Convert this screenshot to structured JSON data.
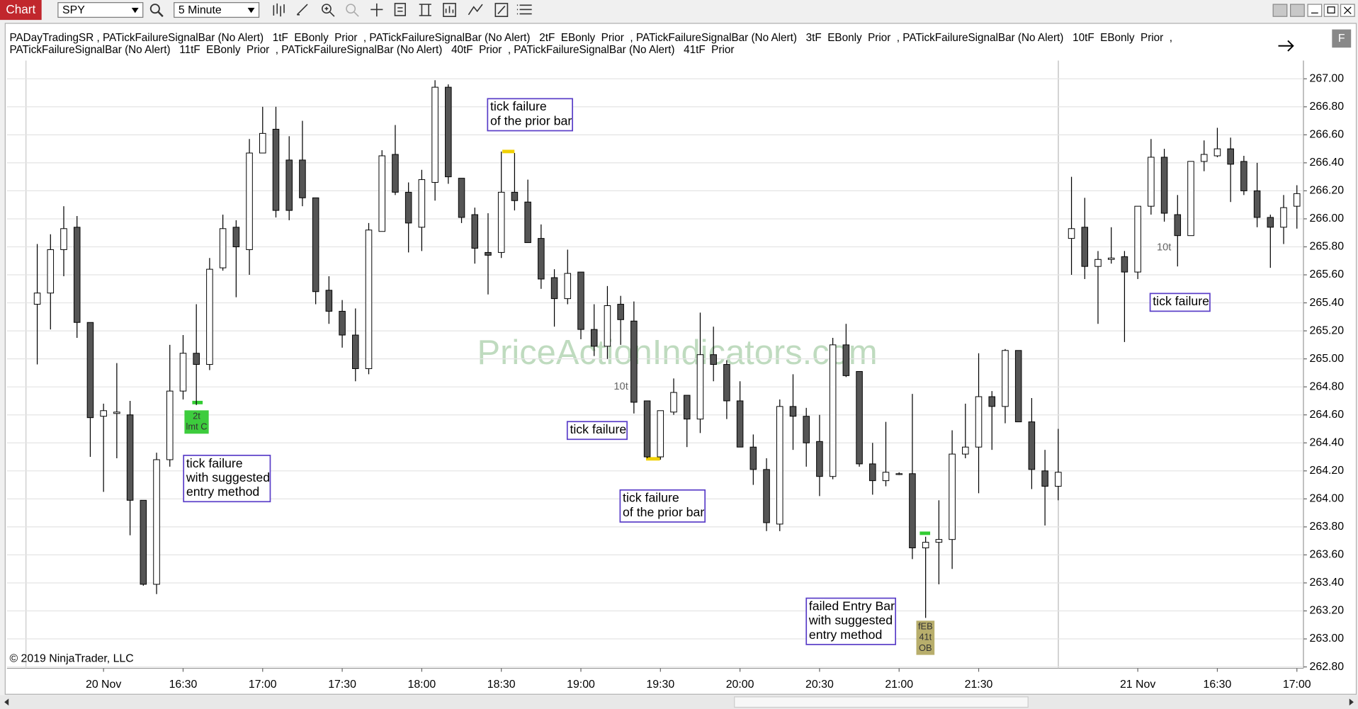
{
  "toolbar": {
    "title": "Chart",
    "instrument": "SPY",
    "interval": "5 Minute",
    "float_button": "F"
  },
  "indicator_label": [
    "PADayTradingSR , PATickFailureSignalBar (No Alert)   1tF  EBonly  Prior  , PATickFailureSignalBar (No Alert)   2tF  EBonly  Prior  , PATickFailureSignalBar (No Alert)   3tF  EBonly  Prior  , PATickFailureSignalBar (No Alert)   10tF  EBonly  Prior  ,",
    "PATickFailureSignalBar (No Alert)   11tF  EBonly  Prior  , PATickFailureSignalBar (No Alert)   40tF  Prior  , PATickFailureSignalBar (No Alert)   41tF  Prior"
  ],
  "copyright": "© 2019 NinjaTrader, LLC",
  "watermark": "PriceActionIndicators.com",
  "annotations": [
    {
      "lines": [
        "tick failure",
        "with suggested",
        "entry method"
      ]
    },
    {
      "lines": [
        "tick failure",
        "of the prior bar"
      ]
    },
    {
      "lines": [
        "tick failure"
      ]
    },
    {
      "lines": [
        "tick failure",
        "of the prior bar"
      ]
    },
    {
      "lines": [
        "failed Entry Bar",
        "with suggested",
        "entry method"
      ]
    },
    {
      "lines": [
        "tick failure"
      ]
    }
  ],
  "signal_labels": [
    {
      "lines": [
        "2t",
        "lmt C"
      ]
    },
    {
      "lines": [
        "fEB",
        "41t",
        "OB"
      ]
    }
  ],
  "tick_labels": [
    "10t",
    "10t"
  ],
  "chart_data": {
    "type": "candlestick",
    "x": [
      null,
      null,
      null,
      null,
      null,
      "20 Nov",
      null,
      null,
      null,
      null,
      null,
      "16:30",
      null,
      null,
      null,
      null,
      null,
      "17:00",
      null,
      null,
      null,
      null,
      null,
      "17:30",
      null,
      null,
      null,
      null,
      null,
      "18:00",
      null,
      null,
      null,
      null,
      null,
      "18:30",
      null,
      null,
      null,
      null,
      null,
      "19:00",
      null,
      null,
      null,
      null,
      null,
      "19:30",
      null,
      null,
      null,
      null,
      null,
      "20:00",
      null,
      null,
      null,
      null,
      null,
      "20:30",
      null,
      null,
      null,
      null,
      null,
      "21:00",
      null,
      null,
      null,
      null,
      null,
      "21:30",
      null,
      null,
      null,
      null,
      null,
      null,
      null,
      null,
      null,
      null,
      null,
      "21 Nov",
      null,
      null,
      null,
      null,
      null,
      "16:30",
      null,
      null,
      null,
      null,
      null,
      "17:00"
    ],
    "open": [
      265.39,
      265.47,
      265.78,
      265.94,
      265.26,
      264.59,
      264.61,
      264.6,
      263.99,
      263.39,
      264.28,
      264.77,
      265.04,
      264.96,
      265.65,
      265.94,
      265.78,
      266.47,
      266.64,
      266.42,
      266.42,
      266.15,
      265.49,
      265.34,
      265.17,
      264.93,
      265.91,
      266.46,
      266.19,
      265.94,
      266.26,
      266.94,
      266.29,
      266.03,
      265.76,
      265.76,
      266.19,
      266.12,
      265.86,
      265.58,
      265.43,
      265.62,
      265.21,
      265.09,
      265.39,
      265.27,
      264.7,
      264.3,
      264.62,
      264.74,
      264.57,
      265.03,
      264.96,
      264.7,
      264.37,
      264.21,
      263.82,
      264.66,
      264.59,
      264.41,
      264.16,
      265.1,
      264.91,
      264.25,
      264.13,
      264.18,
      264.18,
      263.65,
      263.69,
      263.71,
      264.32,
      264.37,
      264.73,
      264.66,
      265.06,
      264.55,
      264.2,
      264.09,
      265.86,
      265.94,
      265.66,
      265.71,
      265.73,
      265.62,
      266.09,
      266.44,
      266.03,
      265.88,
      266.41,
      266.45,
      266.5,
      266.41,
      266.2,
      266.01,
      265.94,
      266.09
    ],
    "high": [
      265.82,
      265.89,
      266.09,
      266.02,
      265.26,
      264.68,
      264.97,
      264.7,
      263.99,
      264.33,
      265.1,
      265.17,
      265.39,
      265.72,
      266.03,
      265.99,
      266.57,
      266.8,
      266.8,
      266.59,
      266.7,
      266.15,
      265.59,
      265.42,
      265.36,
      265.97,
      266.49,
      266.67,
      266.26,
      266.35,
      266.99,
      266.96,
      266.29,
      266.08,
      266.04,
      266.48,
      266.47,
      266.28,
      265.96,
      265.64,
      265.78,
      265.62,
      265.39,
      265.52,
      265.45,
      265.41,
      264.7,
      264.63,
      264.86,
      264.74,
      265.33,
      265.23,
      264.99,
      264.84,
      264.46,
      264.29,
      264.71,
      264.89,
      264.65,
      264.6,
      265.15,
      265.25,
      264.91,
      264.4,
      264.55,
      264.19,
      264.75,
      263.73,
      263.99,
      264.49,
      264.68,
      265.04,
      264.77,
      265.07,
      265.06,
      264.72,
      264.35,
      264.5,
      266.3,
      266.15,
      265.77,
      265.94,
      265.77,
      266.09,
      266.57,
      266.5,
      266.17,
      266.41,
      266.56,
      266.65,
      266.58,
      266.45,
      266.4,
      266.03,
      266.17,
      266.24
    ],
    "low": [
      264.96,
      265.21,
      265.59,
      265.15,
      264.3,
      264.05,
      264.29,
      263.74,
      263.38,
      263.32,
      264.23,
      264.71,
      264.67,
      264.92,
      265.63,
      265.44,
      265.6,
      266.47,
      266.01,
      265.99,
      266.09,
      265.39,
      265.25,
      265.08,
      264.84,
      264.89,
      265.91,
      266.17,
      265.76,
      265.77,
      266.13,
      266.25,
      265.97,
      265.68,
      265.46,
      265.72,
      266.06,
      265.83,
      265.5,
      265.23,
      265.39,
      265.14,
      265.02,
      265.0,
      265.1,
      264.61,
      264.29,
      264.28,
      264.6,
      264.37,
      264.47,
      264.84,
      264.57,
      264.37,
      264.1,
      263.77,
      263.77,
      264.35,
      264.23,
      264.02,
      264.14,
      264.87,
      264.23,
      264.03,
      264.09,
      264.17,
      263.57,
      263.15,
      263.39,
      263.5,
      264.29,
      264.04,
      264.35,
      264.54,
      264.55,
      264.07,
      263.81,
      263.99,
      265.6,
      265.57,
      265.25,
      265.68,
      265.12,
      265.57,
      266.03,
      265.98,
      265.66,
      265.88,
      266.34,
      266.44,
      266.12,
      266.17,
      265.94,
      265.65,
      265.82,
      265.93
    ],
    "close": [
      265.47,
      265.78,
      265.93,
      265.26,
      264.58,
      264.63,
      264.62,
      263.99,
      263.39,
      264.28,
      264.77,
      265.04,
      264.96,
      265.64,
      265.93,
      265.8,
      266.47,
      266.61,
      266.06,
      266.06,
      266.15,
      265.48,
      265.34,
      265.17,
      264.93,
      265.92,
      266.45,
      266.19,
      265.97,
      266.28,
      266.94,
      266.3,
      266.01,
      265.79,
      265.74,
      266.19,
      266.13,
      265.83,
      265.57,
      265.43,
      265.61,
      265.21,
      265.09,
      265.38,
      265.28,
      264.69,
      264.3,
      264.63,
      264.76,
      264.57,
      265.03,
      264.96,
      264.7,
      264.37,
      264.21,
      263.83,
      264.66,
      264.59,
      264.4,
      264.16,
      265.1,
      264.88,
      264.25,
      264.13,
      264.19,
      264.18,
      263.65,
      263.69,
      263.71,
      264.32,
      264.37,
      264.73,
      264.66,
      265.06,
      264.55,
      264.21,
      264.09,
      264.19,
      265.93,
      265.66,
      265.71,
      265.72,
      265.62,
      266.09,
      266.44,
      266.04,
      265.88,
      266.41,
      266.46,
      266.5,
      266.39,
      266.2,
      266.01,
      265.94,
      266.08,
      266.18
    ],
    "up_color": "#ffffff",
    "down_color": "#555555",
    "ylim": [
      262.79,
      267.13
    ],
    "yticks": [
      {
        "value": 262.8,
        "label": "262.80"
      },
      {
        "value": 263,
        "label": "263.00"
      },
      {
        "value": 263.2,
        "label": "263.20"
      },
      {
        "value": 263.4,
        "label": "263.40"
      },
      {
        "value": 263.6,
        "label": "263.60"
      },
      {
        "value": 263.8,
        "label": "263.80"
      },
      {
        "value": 264,
        "label": "264.00"
      },
      {
        "value": 264.2,
        "label": "264.20"
      },
      {
        "value": 264.4,
        "label": "264.40"
      },
      {
        "value": 264.6,
        "label": "264.60"
      },
      {
        "value": 264.8,
        "label": "264.80"
      },
      {
        "value": 265,
        "label": "265.00"
      },
      {
        "value": 265.2,
        "label": "265.20"
      },
      {
        "value": 265.4,
        "label": "265.40"
      },
      {
        "value": 265.6,
        "label": "265.60"
      },
      {
        "value": 265.8,
        "label": "265.80"
      },
      {
        "value": 266,
        "label": "266.00"
      },
      {
        "value": 266.2,
        "label": "266.20"
      },
      {
        "value": 266.4,
        "label": "266.40"
      },
      {
        "value": 266.6,
        "label": "266.60"
      },
      {
        "value": 266.8,
        "label": "266.80"
      },
      {
        "value": 267,
        "label": "267.00"
      }
    ],
    "grid": true
  }
}
